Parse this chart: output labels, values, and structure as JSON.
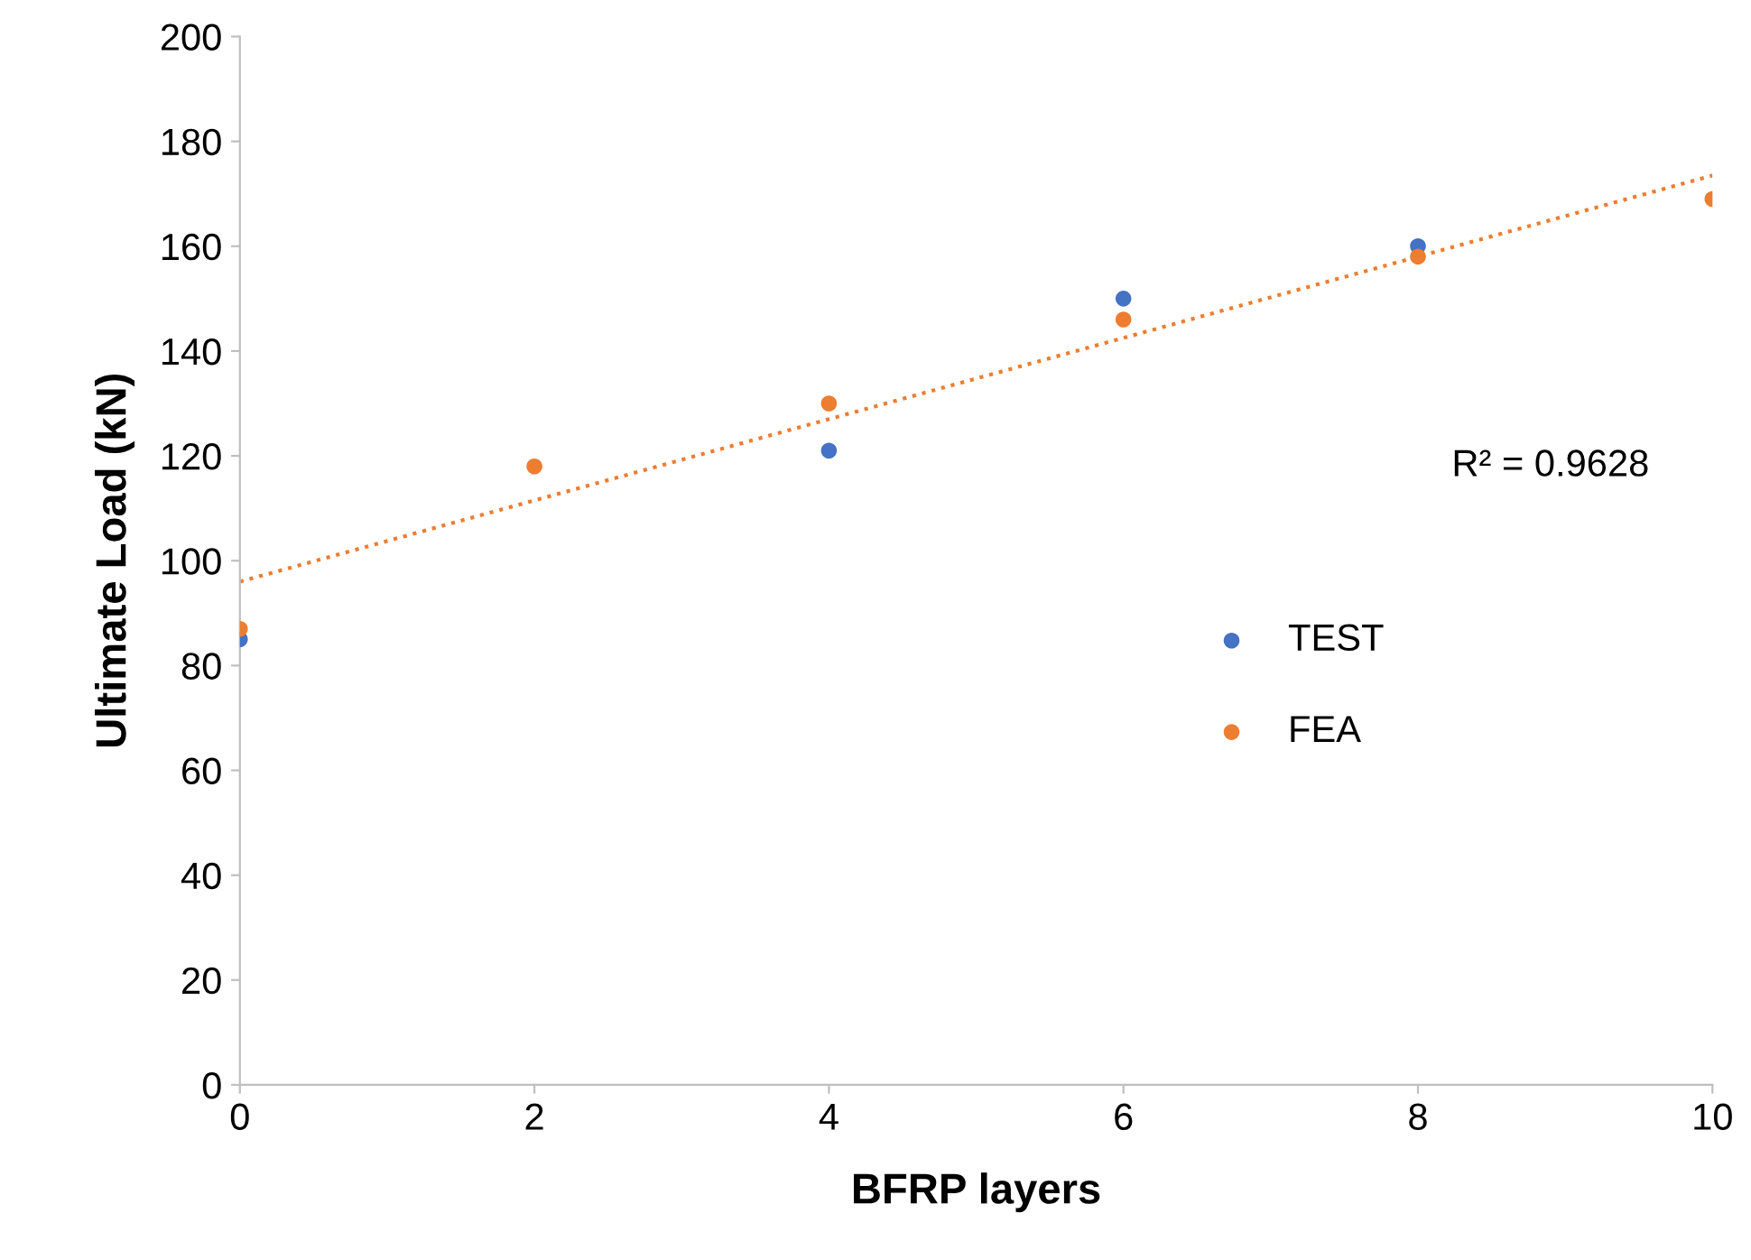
{
  "chart_data": {
    "type": "scatter",
    "xlabel": "BFRP layers",
    "ylabel": "Ultimate Load (kN)",
    "series": [
      {
        "name": "TEST",
        "color": "#4472c4",
        "x": [
          0,
          4,
          6,
          8
        ],
        "values": [
          85,
          121,
          150,
          160
        ]
      },
      {
        "name": "FEA",
        "color": "#ed7d31",
        "x": [
          0,
          2,
          4,
          6,
          8,
          10
        ],
        "values": [
          87,
          118,
          130,
          146,
          158,
          169
        ]
      },
      {
        "type": "line",
        "color": "#ed7d31",
        "x": [
          0,
          10
        ],
        "values": [
          96,
          173.5
        ],
        "line_style": "dotted",
        "marker": "none"
      }
    ],
    "annotations": [
      "R² = 0.9628"
    ],
    "xlim": [
      0,
      10
    ],
    "xticks": [
      0,
      2,
      4,
      6,
      8,
      10
    ],
    "ylim": [
      0,
      200
    ],
    "yticks": [
      0,
      20,
      40,
      60,
      80,
      100,
      120,
      140,
      160,
      180,
      200
    ],
    "grid": false,
    "legend": "right",
    "marker": "circle"
  }
}
